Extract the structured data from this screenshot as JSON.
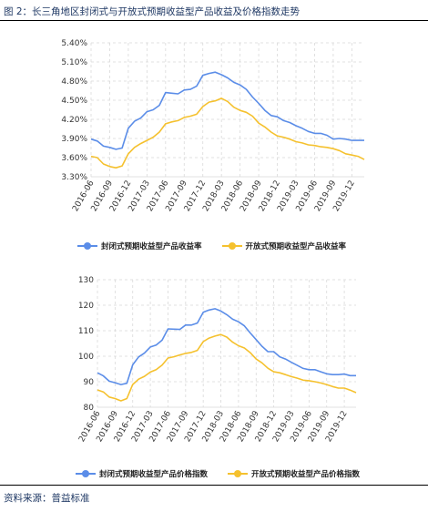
{
  "figure_title": "图 2：长三角地区封闭式与开放式预期收益型产品收益及价格指数走势",
  "source_note": "资料来源：普益标准",
  "colors": {
    "series_1": "#5b8de8",
    "series_2": "#f5c12e",
    "grid": "#d9d9d9",
    "rule": "#000000"
  },
  "chart_data": [
    {
      "type": "line",
      "categories": [
        "2016-06",
        "2016-07",
        "2016-08",
        "2016-09",
        "2016-10",
        "2016-11",
        "2016-12",
        "2017-01",
        "2017-02",
        "2017-03",
        "2017-04",
        "2017-05",
        "2017-06",
        "2017-07",
        "2017-08",
        "2017-09",
        "2017-10",
        "2017-11",
        "2017-12",
        "2018-01",
        "2018-02",
        "2018-03",
        "2018-04",
        "2018-05",
        "2018-06",
        "2018-07",
        "2018-08",
        "2018-09",
        "2018-10",
        "2018-11",
        "2018-12",
        "2019-01",
        "2019-02",
        "2019-03",
        "2019-04",
        "2019-05",
        "2019-06",
        "2019-07",
        "2019-08",
        "2019-09",
        "2019-10",
        "2019-11",
        "2019-12",
        "2020-01",
        "2020-02"
      ],
      "tick_labels": [
        "2016-06",
        "2016-09",
        "2016-12",
        "2017-03",
        "2017-06",
        "2017-09",
        "2017-12",
        "2018-03",
        "2018-06",
        "2018-09",
        "2018-12",
        "2019-03",
        "2019-06",
        "2019-09",
        "2019-12"
      ],
      "y_ticks": [
        "3.30%",
        "3.60%",
        "3.90%",
        "4.20%",
        "4.50%",
        "4.80%",
        "5.10%",
        "5.40%"
      ],
      "ylim": [
        3.3,
        5.4
      ],
      "y_unit": "%",
      "grid": true,
      "legend_position": "bottom",
      "series": [
        {
          "name": "封闭式预期收益型产品收益率",
          "values": [
            3.89,
            3.86,
            3.78,
            3.76,
            3.73,
            3.75,
            4.06,
            4.17,
            4.22,
            4.32,
            4.35,
            4.42,
            4.62,
            4.61,
            4.6,
            4.66,
            4.67,
            4.72,
            4.89,
            4.92,
            4.94,
            4.9,
            4.85,
            4.78,
            4.74,
            4.67,
            4.55,
            4.45,
            4.34,
            4.26,
            4.24,
            4.18,
            4.15,
            4.1,
            4.06,
            4.01,
            3.98,
            3.98,
            3.95,
            3.89,
            3.9,
            3.89,
            3.87,
            3.87,
            3.87
          ]
        },
        {
          "name": "开放式预期收益型产品收益率",
          "values": [
            3.62,
            3.6,
            3.5,
            3.46,
            3.44,
            3.47,
            3.66,
            3.76,
            3.82,
            3.87,
            3.92,
            4.0,
            4.13,
            4.16,
            4.18,
            4.23,
            4.25,
            4.28,
            4.4,
            4.47,
            4.49,
            4.53,
            4.48,
            4.39,
            4.34,
            4.31,
            4.25,
            4.14,
            4.08,
            4.0,
            3.94,
            3.92,
            3.89,
            3.85,
            3.83,
            3.8,
            3.79,
            3.77,
            3.76,
            3.74,
            3.71,
            3.66,
            3.64,
            3.62,
            3.57
          ]
        }
      ]
    },
    {
      "type": "line",
      "categories": [
        "2016-06",
        "2016-07",
        "2016-08",
        "2016-09",
        "2016-10",
        "2016-11",
        "2016-12",
        "2017-01",
        "2017-02",
        "2017-03",
        "2017-04",
        "2017-05",
        "2017-06",
        "2017-07",
        "2017-08",
        "2017-09",
        "2017-10",
        "2017-11",
        "2017-12",
        "2018-01",
        "2018-02",
        "2018-03",
        "2018-04",
        "2018-05",
        "2018-06",
        "2018-07",
        "2018-08",
        "2018-09",
        "2018-10",
        "2018-11",
        "2018-12",
        "2019-01",
        "2019-02",
        "2019-03",
        "2019-04",
        "2019-05",
        "2019-06",
        "2019-07",
        "2019-08",
        "2019-09",
        "2019-10",
        "2019-11",
        "2019-12",
        "2020-01",
        "2020-02"
      ],
      "tick_labels": [
        "2016-06",
        "2016-09",
        "2016-12",
        "2017-03",
        "2017-06",
        "2017-09",
        "2017-12",
        "2018-03",
        "2018-06",
        "2018-09",
        "2018-12",
        "2019-03",
        "2019-06",
        "2019-09",
        "2019-12"
      ],
      "y_ticks": [
        "80",
        "90",
        "100",
        "110",
        "120",
        "130"
      ],
      "ylim": [
        80,
        130
      ],
      "y_unit": "",
      "grid": true,
      "legend_position": "bottom",
      "series": [
        {
          "name": "封闭式预期收益型产品价格指数",
          "values": [
            93.5,
            92.3,
            90.2,
            89.6,
            88.9,
            89.4,
            96.6,
            99.7,
            101.2,
            103.6,
            104.4,
            106.3,
            110.7,
            110.6,
            110.5,
            112.2,
            112.2,
            113.0,
            117.2,
            118.1,
            118.6,
            117.7,
            116.3,
            114.5,
            113.5,
            111.9,
            109.1,
            106.5,
            103.9,
            101.8,
            101.8,
            99.8,
            98.9,
            97.6,
            96.4,
            95.2,
            94.7,
            94.7,
            93.9,
            93.1,
            92.8,
            92.8,
            93.0,
            92.4,
            92.4
          ]
        },
        {
          "name": "开放式预期收益型产品价格指数",
          "values": [
            86.8,
            86.0,
            84.0,
            83.4,
            82.5,
            83.4,
            88.9,
            91.0,
            92.1,
            93.8,
            94.7,
            96.5,
            99.3,
            99.8,
            100.5,
            101.1,
            101.5,
            102.3,
            105.7,
            107.1,
            107.9,
            108.5,
            107.5,
            105.5,
            104.1,
            103.2,
            101.4,
            98.9,
            97.4,
            95.3,
            93.9,
            93.5,
            92.8,
            92.0,
            91.4,
            90.6,
            90.4,
            90.0,
            89.5,
            88.9,
            88.1,
            87.5,
            87.5,
            86.7,
            85.7
          ]
        }
      ]
    }
  ]
}
